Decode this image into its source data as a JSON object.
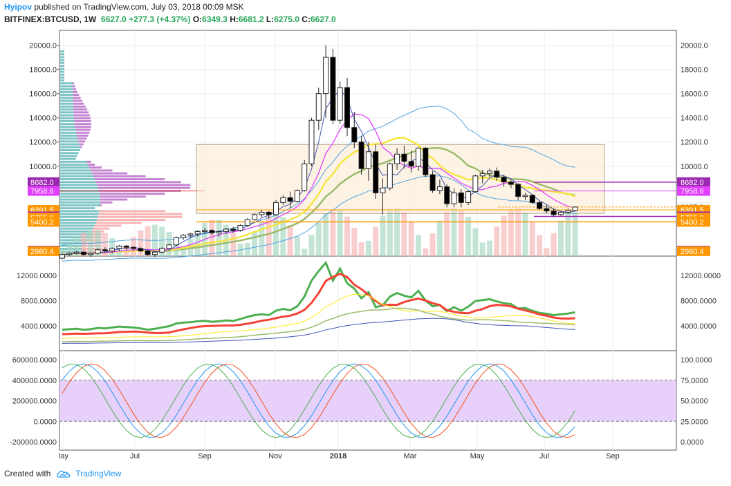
{
  "header": {
    "user": "Hyipov",
    "published_text": "published on TradingView.com, July 03, 2018 00:09 MSK",
    "symbol": "BITFINEX:BTCUSD, 1W",
    "last": "6627.0",
    "change": "+277.3 (+4.37%)",
    "o_label": "O:",
    "o": "6349.3",
    "h_label": "H:",
    "h": "6681.2",
    "l_label": "L:",
    "l": "6275.0",
    "c_label": "C:",
    "c": "6627.0"
  },
  "footer": {
    "created_with": "Created with",
    "brand": "TradingView",
    "logo_icon": "tradingview-cloud-icon"
  },
  "colors": {
    "up_fill": "#ffffff",
    "down_fill": "#000000",
    "grid": "#eeeeee",
    "purple_label": "#9c27b0",
    "magenta_label": "#e040fb",
    "orange_label": "#ff9800",
    "red_label": "#f44336",
    "last_price_label": "#f5f5f5"
  },
  "chart_data": [
    {
      "type": "candlestick",
      "panel": "price",
      "x_labels": [
        "lay",
        "Jul",
        "Sep",
        "Nov",
        "2018",
        "Mar",
        "May",
        "Jul",
        "Sep"
      ],
      "ylim": [
        2800,
        21000
      ],
      "y_ticks": [
        "20000.0",
        "18000.0",
        "16000.0",
        "14000.0",
        "12000.0",
        "10000.0",
        "6627.0"
      ],
      "left_axis_ticks": [
        "20000.0",
        "18000.0",
        "16000.0",
        "14000.0",
        "12000.0",
        "10000.0"
      ],
      "price_labels": [
        {
          "text": "8682.0",
          "value": 8682,
          "color": "#9c27b0",
          "side": "both"
        },
        {
          "text": "7958.6",
          "value": 7958.6,
          "color": "#e040fb",
          "side": "both"
        },
        {
          "text": "6391.5",
          "value": 6391.5,
          "color": "#ff9800",
          "side": "both"
        },
        {
          "text": "5854.0",
          "value": 5854,
          "color": "#9c27b0",
          "side": "both"
        },
        {
          "text": "5755.0",
          "value": 5755,
          "color": "#ff9800",
          "side": "both"
        },
        {
          "text": "5400.2",
          "value": 5400.2,
          "color": "#ff9800",
          "side": "both"
        },
        {
          "text": "3026.0",
          "value": 3026,
          "color": "#9c27b0",
          "side": "both"
        },
        {
          "text": "2980.4",
          "value": 2980.4,
          "color": "#ff9800",
          "side": "both"
        }
      ],
      "last_price": {
        "text": "6627.0",
        "value": 6627
      },
      "candles": [
        [
          2400,
          2800,
          2300,
          2700
        ],
        [
          2700,
          2900,
          2600,
          2800
        ],
        [
          2800,
          3000,
          2700,
          2900
        ],
        [
          2900,
          3000,
          2600,
          2700
        ],
        [
          2700,
          2900,
          2500,
          2800
        ],
        [
          2800,
          3200,
          2700,
          3100
        ],
        [
          3100,
          3300,
          2900,
          3000
        ],
        [
          3000,
          3300,
          2800,
          3200
        ],
        [
          3200,
          3500,
          3000,
          3400
        ],
        [
          3400,
          3500,
          3100,
          3300
        ],
        [
          3300,
          3400,
          3000,
          3200
        ],
        [
          3200,
          3300,
          2900,
          3000
        ],
        [
          3000,
          3100,
          2600,
          2700
        ],
        [
          2700,
          3000,
          2500,
          2900
        ],
        [
          2900,
          3300,
          2800,
          3200
        ],
        [
          3200,
          3600,
          3100,
          3500
        ],
        [
          3500,
          4200,
          3400,
          4100
        ],
        [
          4100,
          4400,
          3900,
          4300
        ],
        [
          4300,
          4500,
          4100,
          4400
        ],
        [
          4400,
          4700,
          4200,
          4600
        ],
        [
          4600,
          4900,
          4400,
          4700
        ],
        [
          4700,
          4800,
          4300,
          4500
        ],
        [
          4500,
          4700,
          4200,
          4600
        ],
        [
          4600,
          4900,
          4400,
          4800
        ],
        [
          4800,
          5000,
          4500,
          4700
        ],
        [
          4700,
          5200,
          4600,
          5100
        ],
        [
          5100,
          5700,
          5000,
          5600
        ],
        [
          5600,
          6100,
          5500,
          6000
        ],
        [
          6000,
          6400,
          5800,
          6200
        ],
        [
          6200,
          6300,
          5700,
          6000
        ],
        [
          6000,
          7200,
          5900,
          7000
        ],
        [
          7000,
          7600,
          6800,
          7400
        ],
        [
          7400,
          7900,
          6500,
          7100
        ],
        [
          7100,
          8100,
          7000,
          8000
        ],
        [
          8000,
          10500,
          7900,
          10200
        ],
        [
          10200,
          14000,
          10000,
          13800
        ],
        [
          13800,
          16500,
          13000,
          16000
        ],
        [
          16000,
          20000,
          14000,
          19000
        ],
        [
          19000,
          19700,
          13500,
          13800
        ],
        [
          13800,
          17000,
          13500,
          16500
        ],
        [
          16500,
          17300,
          12500,
          13200
        ],
        [
          13200,
          14500,
          11500,
          12000
        ],
        [
          12000,
          12500,
          9300,
          9800
        ],
        [
          9800,
          12000,
          8800,
          11200
        ],
        [
          11200,
          11800,
          7300,
          7800
        ],
        [
          7800,
          9000,
          6000,
          8200
        ],
        [
          8200,
          10300,
          8000,
          10200
        ],
        [
          10200,
          11500,
          9700,
          11000
        ],
        [
          11000,
          11700,
          9800,
          10400
        ],
        [
          10400,
          11300,
          9500,
          10000
        ],
        [
          10000,
          11600,
          9600,
          11500
        ],
        [
          11500,
          11600,
          9100,
          9300
        ],
        [
          9300,
          9600,
          7800,
          8000
        ],
        [
          8000,
          8900,
          7700,
          8300
        ],
        [
          8300,
          8500,
          6600,
          6900
        ],
        [
          6900,
          8200,
          6600,
          7800
        ],
        [
          7800,
          8100,
          6600,
          7000
        ],
        [
          7000,
          8000,
          6800,
          7900
        ],
        [
          7900,
          9300,
          7800,
          9200
        ],
        [
          9200,
          9700,
          8600,
          9400
        ],
        [
          9400,
          9800,
          9100,
          9600
        ],
        [
          9600,
          9900,
          8800,
          9100
        ],
        [
          9100,
          9300,
          8300,
          8700
        ],
        [
          8700,
          8900,
          8200,
          8500
        ],
        [
          8500,
          8600,
          7200,
          7500
        ],
        [
          7500,
          7800,
          7200,
          7600
        ],
        [
          7600,
          7700,
          6900,
          7000
        ],
        [
          7000,
          7100,
          6400,
          6500
        ],
        [
          6500,
          6800,
          6100,
          6300
        ],
        [
          6300,
          6500,
          5800,
          6000
        ],
        [
          6000,
          6300,
          5900,
          6200
        ],
        [
          6200,
          6500,
          6100,
          6349
        ],
        [
          6349,
          6681,
          6275,
          6627
        ]
      ]
    },
    {
      "type": "line",
      "panel": "oscillator-1",
      "y_ticks": [
        "12000.0000",
        "8000.0000",
        "4000.0000"
      ],
      "ylim": [
        500,
        14500
      ]
    },
    {
      "type": "line",
      "panel": "oscillator-2",
      "y_ticks_left": [
        "600000.0000",
        "400000.0000",
        "200000.0000",
        "0.0000",
        "-200000.0000"
      ],
      "y_ticks_right": [
        "100.0000",
        "75.0000",
        "50.0000",
        "25.0000",
        "0.0000"
      ],
      "band": [
        25,
        75
      ]
    }
  ]
}
